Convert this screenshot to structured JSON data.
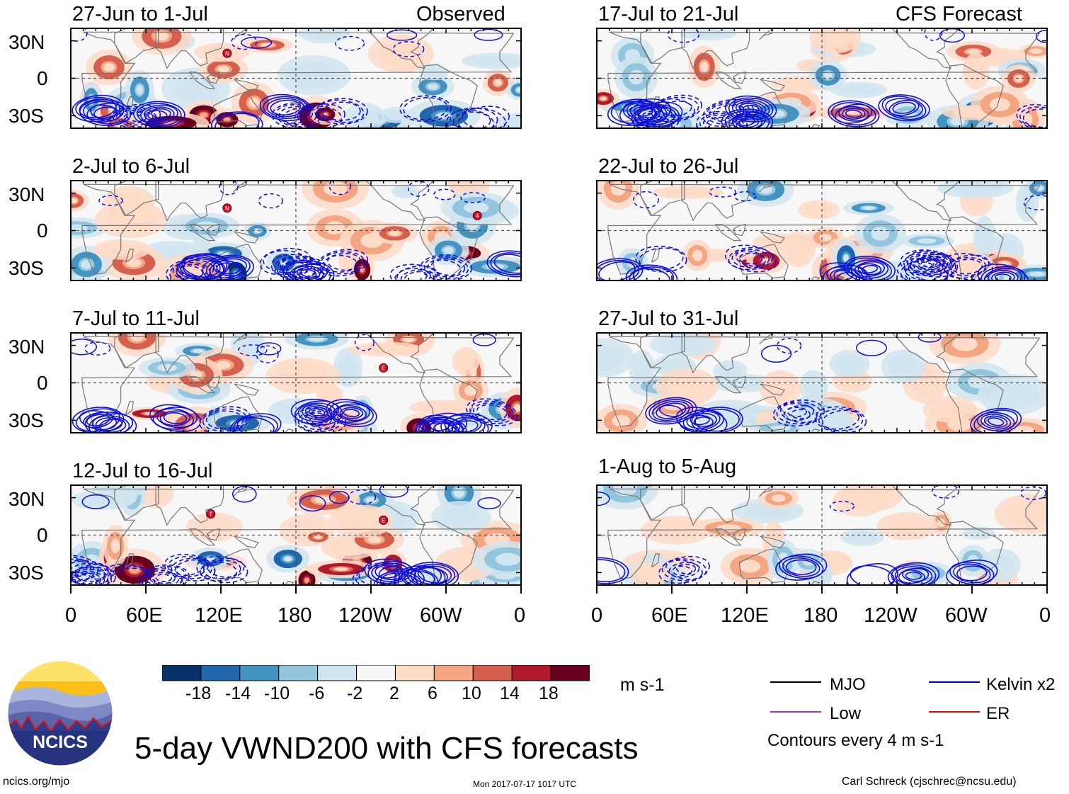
{
  "chart_data": {
    "type": "heatmap",
    "title": "5-day VWND200 with CFS forecasts",
    "variable": "VWND200",
    "units": "m s-1",
    "x_ticks": [
      "0",
      "60E",
      "120E",
      "180",
      "120W",
      "60W",
      "0"
    ],
    "y_ticks": [
      "30N",
      "0",
      "30S"
    ],
    "xlim_deg_east": [
      0,
      360
    ],
    "ylim_deg": [
      -40,
      40
    ],
    "colorbar": {
      "labels": [
        "-18",
        "-14",
        "-10",
        "-6",
        "-2",
        "2",
        "6",
        "10",
        "14",
        "18"
      ],
      "colors": [
        "#08306b",
        "#2166ac",
        "#4393c3",
        "#92c5de",
        "#d1e5f0",
        "#f7f7f7",
        "#fddbc7",
        "#f4a582",
        "#d6604d",
        "#b2182b",
        "#67001f"
      ]
    },
    "columns": [
      {
        "label": "Observed",
        "panels": [
          "27-Jun to 1-Jul",
          "2-Jul to 6-Jul",
          "7-Jul to 11-Jul",
          "12-Jul to 16-Jul"
        ]
      },
      {
        "label": "CFS Forecast",
        "panels": [
          "17-Jul to 21-Jul",
          "22-Jul to 26-Jul",
          "27-Jul to 31-Jul",
          "1-Aug to 5-Aug"
        ]
      }
    ],
    "legend": [
      {
        "label": "MJO",
        "color": "#000000"
      },
      {
        "label": "Kelvin x2",
        "color": "#0000dd"
      },
      {
        "label": "Low",
        "color": "#9933cc"
      },
      {
        "label": "ER",
        "color": "#dd0000"
      }
    ],
    "contour_note": "Contours every 4 m s-1",
    "storm_markers": [
      {
        "panel": 0,
        "symbol": "N",
        "lon": 125,
        "lat": 20
      },
      {
        "panel": 1,
        "symbol": "N",
        "lon": 125,
        "lat": 18
      },
      {
        "panel": 1,
        "symbol": "4",
        "lon": 325,
        "lat": 12
      },
      {
        "panel": 2,
        "symbol": "E",
        "lon": 250,
        "lat": 12
      },
      {
        "panel": 3,
        "symbol": "T",
        "lon": 112,
        "lat": 17
      },
      {
        "panel": 3,
        "symbol": "E",
        "lon": 250,
        "lat": 12
      }
    ]
  },
  "branding": {
    "logo_text": "NCICS",
    "site": "ncics.org/mjo",
    "timestamp": "Mon 2017-07-17 1017 UTC",
    "author": "Carl Schreck (cjschrec@ncsu.edu)"
  }
}
